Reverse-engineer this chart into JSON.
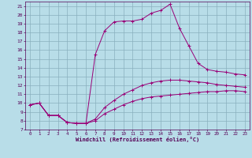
{
  "xlabel": "Windchill (Refroidissement éolien,°C)",
  "xlim": [
    -0.5,
    23.5
  ],
  "ylim": [
    7,
    21.5
  ],
  "yticks": [
    7,
    8,
    9,
    10,
    11,
    12,
    13,
    14,
    15,
    16,
    17,
    18,
    19,
    20,
    21
  ],
  "xticks": [
    0,
    1,
    2,
    3,
    4,
    5,
    6,
    7,
    8,
    9,
    10,
    11,
    12,
    13,
    14,
    15,
    16,
    17,
    18,
    19,
    20,
    21,
    22,
    23
  ],
  "bg_color": "#b8dde8",
  "grid_color": "#8ab0be",
  "line_color": "#990077",
  "curve1_x": [
    0,
    1,
    2,
    3,
    4,
    5,
    6,
    7,
    8,
    9,
    10,
    11,
    12,
    13,
    14,
    15,
    16,
    17,
    18,
    19,
    20,
    21,
    22,
    23
  ],
  "curve1_y": [
    9.8,
    10.0,
    8.6,
    8.6,
    7.8,
    7.7,
    7.7,
    8.0,
    8.8,
    9.3,
    9.8,
    10.2,
    10.5,
    10.7,
    10.8,
    10.9,
    11.0,
    11.1,
    11.2,
    11.3,
    11.3,
    11.4,
    11.4,
    11.3
  ],
  "curve2_x": [
    0,
    1,
    2,
    3,
    4,
    5,
    6,
    7,
    8,
    9,
    10,
    11,
    12,
    13,
    14,
    15,
    16,
    17,
    18,
    19,
    20,
    21,
    22,
    23
  ],
  "curve2_y": [
    9.8,
    10.0,
    8.6,
    8.6,
    7.8,
    7.7,
    7.7,
    8.2,
    9.5,
    10.3,
    11.0,
    11.5,
    12.0,
    12.3,
    12.5,
    12.6,
    12.6,
    12.5,
    12.4,
    12.3,
    12.1,
    12.0,
    11.9,
    11.8
  ],
  "curve3_x": [
    0,
    1,
    2,
    3,
    4,
    5,
    6,
    7,
    8,
    9,
    10,
    11,
    12,
    13,
    14,
    15,
    16,
    17,
    18,
    19,
    20,
    21,
    22,
    23
  ],
  "curve3_y": [
    9.8,
    10.0,
    8.6,
    8.6,
    7.8,
    7.7,
    7.7,
    15.5,
    18.2,
    19.2,
    19.3,
    19.3,
    19.5,
    20.2,
    20.5,
    21.2,
    18.5,
    16.5,
    14.5,
    13.8,
    13.6,
    13.5,
    13.3,
    13.2
  ]
}
